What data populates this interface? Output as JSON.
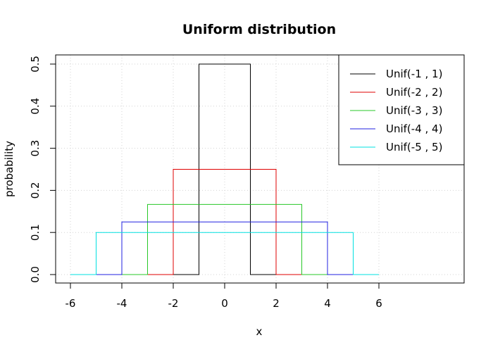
{
  "chart_data": {
    "type": "line",
    "title": "Uniform distribution",
    "xlabel": "x",
    "ylabel": "probability",
    "xlim": [
      -6,
      6
    ],
    "ylim": [
      0,
      0.5
    ],
    "x_ticks": [
      -6,
      -4,
      -2,
      0,
      2,
      4,
      6
    ],
    "y_ticks": [
      0.0,
      0.1,
      0.2,
      0.3,
      0.4,
      0.5
    ],
    "x_tick_labels": [
      "-6",
      "-4",
      "-2",
      "0",
      "2",
      "4",
      "6"
    ],
    "y_tick_labels": [
      "0.0",
      "0.1",
      "0.2",
      "0.3",
      "0.4",
      "0.5"
    ],
    "grid": true,
    "legend_position": "top-right",
    "series": [
      {
        "name": "Unif(-1 , 1)",
        "color": "#000000",
        "lower": -1,
        "upper": 1,
        "density": 0.5
      },
      {
        "name": "Unif(-2 , 2)",
        "color": "#df0000",
        "lower": -2,
        "upper": 2,
        "density": 0.25
      },
      {
        "name": "Unif(-3 , 3)",
        "color": "#28c828",
        "lower": -3,
        "upper": 3,
        "density": 0.1667
      },
      {
        "name": "Unif(-4 , 4)",
        "color": "#2020e0",
        "lower": -4,
        "upper": 4,
        "density": 0.125
      },
      {
        "name": "Unif(-5 , 5)",
        "color": "#00e0e0",
        "lower": -5,
        "upper": 5,
        "density": 0.1
      }
    ]
  }
}
